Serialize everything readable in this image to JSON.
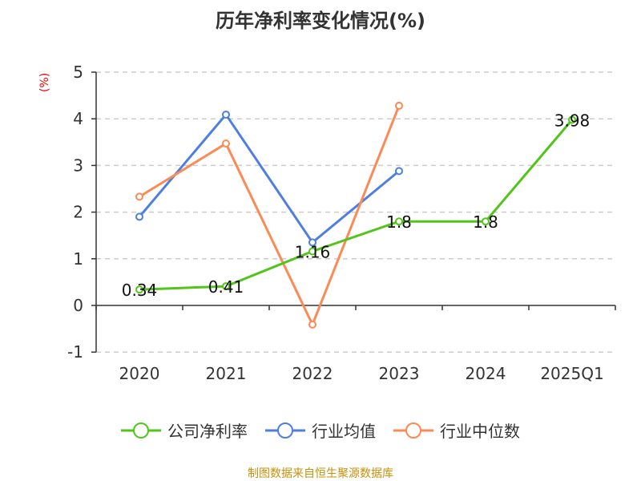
{
  "title": "历年净利率变化情况(%)",
  "source": "制图数据来自恒生聚源数据库",
  "chart_data": {
    "type": "line",
    "title": "历年净利率变化情况(%)",
    "ylabel": "(%)",
    "categories": [
      "2020",
      "2021",
      "2022",
      "2023",
      "2024",
      "2025Q1"
    ],
    "ylim": [
      -1,
      5
    ],
    "yticks": [
      -1,
      0,
      1,
      2,
      3,
      4,
      5
    ],
    "grid": true,
    "legend_position": "bottom",
    "series": [
      {
        "name": "公司净利率",
        "color": "#52c41a",
        "values": [
          0.34,
          0.41,
          1.16,
          1.8,
          1.8,
          3.98
        ],
        "labels": [
          "0.34",
          "0.41",
          "1.16",
          "1.8",
          "1.8",
          "3.98"
        ]
      },
      {
        "name": "行业均值",
        "color": "#4e7fe0",
        "values": [
          1.9,
          4.09,
          1.35,
          2.88,
          null,
          null
        ]
      },
      {
        "name": "行业中位数",
        "color": "#fb8a55",
        "values": [
          2.33,
          3.47,
          -0.41,
          4.28,
          null,
          null
        ]
      }
    ]
  }
}
